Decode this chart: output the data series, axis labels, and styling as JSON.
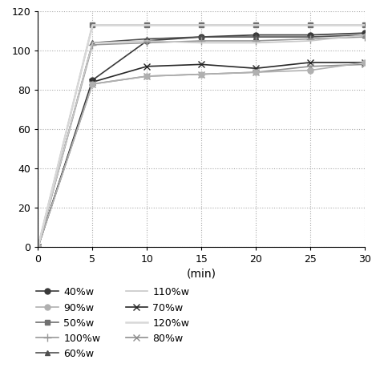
{
  "x": [
    0,
    5,
    10,
    15,
    20,
    25,
    30
  ],
  "series": {
    "40%w": [
      0,
      85,
      105,
      107,
      108,
      108,
      109
    ],
    "50%w": [
      0,
      113,
      113,
      113,
      113,
      113,
      113
    ],
    "60%w": [
      0,
      104,
      106,
      107,
      107,
      107,
      108
    ],
    "70%w": [
      0,
      84,
      92,
      93,
      91,
      94,
      94
    ],
    "80%w": [
      0,
      83,
      87,
      88,
      89,
      92,
      93
    ],
    "90%w": [
      0,
      83,
      87,
      88,
      89,
      90,
      94
    ],
    "100%w": [
      0,
      103,
      104,
      105,
      105,
      106,
      107
    ],
    "110%w": [
      0,
      104,
      105,
      104,
      104,
      105,
      108
    ],
    "120%w": [
      0,
      113,
      113,
      113,
      113,
      113,
      113
    ]
  },
  "line_styles": {
    "40%w": {
      "color": "#3a3a3a",
      "marker": "o",
      "markersize": 5,
      "linewidth": 1.2
    },
    "50%w": {
      "color": "#707070",
      "marker": "s",
      "markersize": 5,
      "linewidth": 1.2
    },
    "60%w": {
      "color": "#505050",
      "marker": "^",
      "markersize": 5,
      "linewidth": 1.2
    },
    "70%w": {
      "color": "#282828",
      "marker": "x",
      "markersize": 6,
      "linewidth": 1.2
    },
    "80%w": {
      "color": "#909090",
      "marker": "x",
      "markersize": 6,
      "linewidth": 1.2
    },
    "90%w": {
      "color": "#b0b0b0",
      "marker": "o",
      "markersize": 5,
      "linewidth": 1.2
    },
    "100%w": {
      "color": "#989898",
      "marker": "+",
      "markersize": 7,
      "linewidth": 1.2
    },
    "110%w": {
      "color": "#c8c8c8",
      "marker": "None",
      "markersize": 5,
      "linewidth": 1.2
    },
    "120%w": {
      "color": "#d8d8d8",
      "marker": "None",
      "markersize": 5,
      "linewidth": 1.8
    }
  },
  "ylim": [
    0,
    120
  ],
  "xlim": [
    0,
    30
  ],
  "yticks": [
    0,
    20,
    40,
    60,
    80,
    100,
    120
  ],
  "xticks": [
    0,
    5,
    10,
    15,
    20,
    25,
    30
  ],
  "xlabel": "(min)",
  "left_legend": [
    "40%w",
    "50%w",
    "60%w",
    "70%w",
    "80%w"
  ],
  "right_legend": [
    "90%w",
    "100%w",
    "110%w",
    "120%w"
  ],
  "background": "#ffffff"
}
